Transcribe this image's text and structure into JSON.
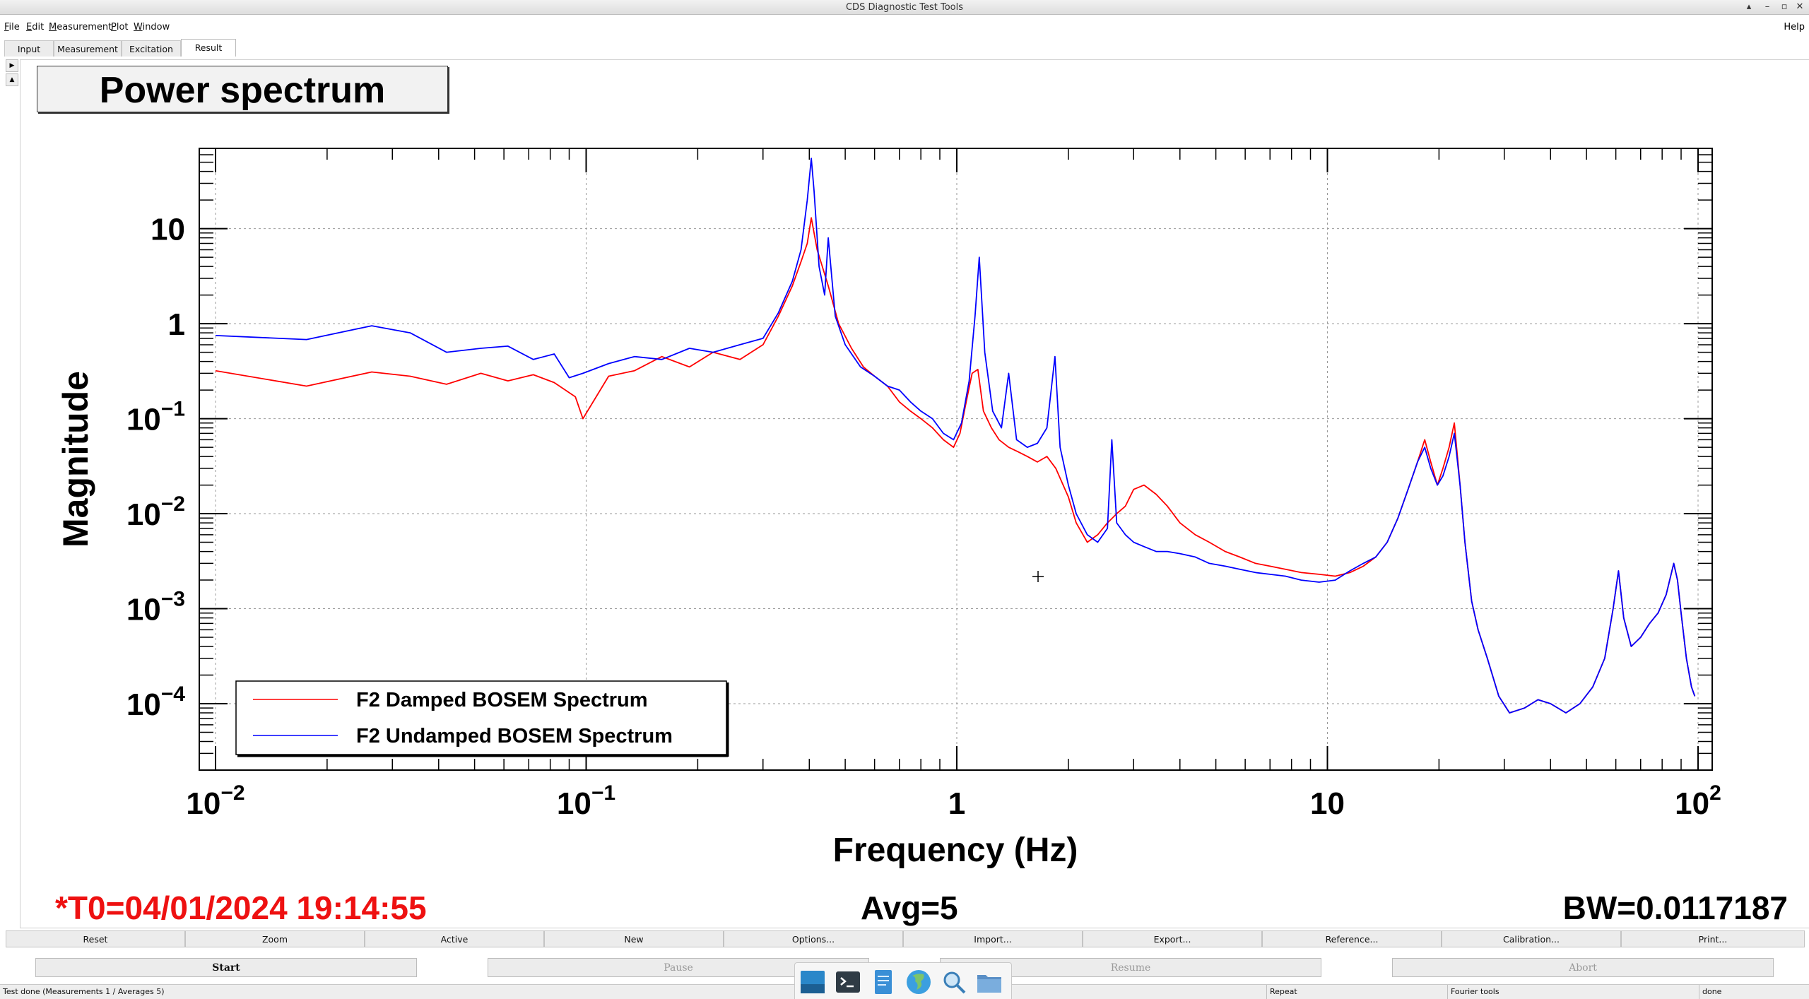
{
  "window": {
    "title": "CDS Diagnostic Test Tools",
    "controls": [
      "▴",
      "–",
      "▫",
      "✕"
    ]
  },
  "menu": {
    "items": [
      {
        "label": "File",
        "accel": "F",
        "rest": "ile"
      },
      {
        "label": "Edit",
        "accel": "E",
        "rest": "dit"
      },
      {
        "label": "Measurement",
        "accel": "M",
        "rest": "easurement"
      },
      {
        "label": "Plot",
        "accel": "P",
        "rest": "lot"
      },
      {
        "label": "Window",
        "accel": "W",
        "rest": "indow"
      }
    ],
    "help": "Help"
  },
  "tabs": [
    {
      "label": "Input",
      "active": false
    },
    {
      "label": "Measurement",
      "active": false
    },
    {
      "label": "Excitation",
      "active": false
    },
    {
      "label": "Result",
      "active": true
    }
  ],
  "side_arrows": [
    "▶",
    "▲"
  ],
  "plot": {
    "title": "Power spectrum",
    "t0": "*T0=04/01/2024 19:14:55",
    "avg": "Avg=5",
    "bw": "BW=0.0117187"
  },
  "colors": {
    "damped": "#ff0000",
    "undamped": "#0000ff",
    "t0_text": "#ee1111"
  },
  "chart_data": {
    "type": "line",
    "title": "Power spectrum",
    "xlabel": "Frequency (Hz)",
    "ylabel": "Magnitude",
    "xscale": "log",
    "yscale": "log",
    "xlim": [
      0.01,
      100
    ],
    "ylim": [
      2e-05,
      70
    ],
    "x_ticks": [
      {
        "base": "10",
        "exp": "−2"
      },
      {
        "base": "10",
        "exp": "−1"
      },
      {
        "base": "1",
        "exp": ""
      },
      {
        "base": "10",
        "exp": ""
      },
      {
        "base": "10",
        "exp": "2"
      }
    ],
    "y_ticks": [
      {
        "base": "10",
        "exp": "−4"
      },
      {
        "base": "10",
        "exp": "−3"
      },
      {
        "base": "10",
        "exp": "−2"
      },
      {
        "base": "10",
        "exp": "−1"
      },
      {
        "base": "1",
        "exp": ""
      },
      {
        "base": "10",
        "exp": ""
      }
    ],
    "grid": true,
    "legend_position": "bottom-left",
    "series": [
      {
        "name": "F2 Damped BOSEM Spectrum",
        "color": "#ff0000",
        "x": [
          0.01,
          0.0176,
          0.0264,
          0.0335,
          0.042,
          0.052,
          0.0615,
          0.072,
          0.082,
          0.0935,
          0.098,
          0.115,
          0.135,
          0.16,
          0.19,
          0.22,
          0.26,
          0.3,
          0.33,
          0.36,
          0.38,
          0.395,
          0.405,
          0.42,
          0.45,
          0.48,
          0.52,
          0.56,
          0.6,
          0.65,
          0.7,
          0.75,
          0.8,
          0.86,
          0.92,
          0.98,
          1.02,
          1.06,
          1.1,
          1.14,
          1.18,
          1.24,
          1.3,
          1.38,
          1.46,
          1.55,
          1.65,
          1.75,
          1.85,
          2.0,
          2.1,
          2.25,
          2.4,
          2.55,
          2.7,
          2.85,
          3.0,
          3.2,
          3.45,
          3.7,
          4.0,
          4.4,
          4.8,
          5.3,
          5.8,
          6.4,
          7.0,
          7.7,
          8.5,
          9.5,
          10.5,
          11.5,
          12.5,
          13.5,
          14.5,
          15.5,
          16.5,
          17.5,
          18.3,
          19.0,
          19.8,
          20.5,
          21.3,
          22.0,
          22.8,
          23.5,
          24.5,
          25.5,
          27.0,
          29.0,
          31.0,
          34.0,
          37.0,
          40.0,
          44.0,
          48.0,
          52.0,
          56.0,
          59.0,
          61.0,
          63.0,
          66.0,
          70.0,
          74.0,
          78.0,
          82.0,
          86.0,
          88.0,
          90.0,
          93.0,
          96.0,
          98.0
        ],
        "y": [
          0.32,
          0.22,
          0.31,
          0.28,
          0.23,
          0.3,
          0.25,
          0.29,
          0.24,
          0.17,
          0.1,
          0.28,
          0.32,
          0.45,
          0.35,
          0.5,
          0.42,
          0.6,
          1.2,
          2.5,
          4.5,
          7.0,
          13.0,
          6.0,
          2.5,
          1.0,
          0.55,
          0.35,
          0.28,
          0.22,
          0.15,
          0.12,
          0.1,
          0.08,
          0.06,
          0.05,
          0.07,
          0.15,
          0.3,
          0.33,
          0.12,
          0.08,
          0.06,
          0.05,
          0.045,
          0.04,
          0.035,
          0.04,
          0.03,
          0.015,
          0.008,
          0.005,
          0.006,
          0.008,
          0.01,
          0.012,
          0.018,
          0.02,
          0.016,
          0.012,
          0.008,
          0.006,
          0.005,
          0.004,
          0.0035,
          0.003,
          0.0028,
          0.0026,
          0.0024,
          0.0023,
          0.0022,
          0.0024,
          0.0028,
          0.0035,
          0.005,
          0.009,
          0.018,
          0.035,
          0.06,
          0.035,
          0.02,
          0.03,
          0.05,
          0.09,
          0.02,
          0.005,
          0.0012,
          0.0006,
          0.0003,
          0.00012,
          8e-05,
          9e-05,
          0.00011,
          0.0001,
          8e-05,
          0.0001,
          0.00015,
          0.0003,
          0.001,
          0.0025,
          0.0008,
          0.0004,
          0.0005,
          0.0007,
          0.0009,
          0.0014,
          0.003,
          0.002,
          0.0009,
          0.0003,
          0.00015,
          0.00012
        ]
      },
      {
        "name": "F2 Undamped BOSEM Spectrum",
        "color": "#0000ff",
        "x": [
          0.01,
          0.0176,
          0.0264,
          0.0335,
          0.042,
          0.052,
          0.0615,
          0.072,
          0.082,
          0.09,
          0.098,
          0.115,
          0.135,
          0.16,
          0.19,
          0.22,
          0.26,
          0.3,
          0.33,
          0.36,
          0.38,
          0.395,
          0.405,
          0.412,
          0.425,
          0.44,
          0.45,
          0.47,
          0.5,
          0.55,
          0.6,
          0.65,
          0.7,
          0.75,
          0.8,
          0.86,
          0.92,
          0.98,
          1.03,
          1.08,
          1.12,
          1.15,
          1.19,
          1.25,
          1.32,
          1.38,
          1.45,
          1.55,
          1.65,
          1.75,
          1.84,
          1.9,
          2.0,
          2.1,
          2.25,
          2.4,
          2.55,
          2.62,
          2.7,
          2.85,
          3.0,
          3.2,
          3.45,
          3.7,
          4.0,
          4.4,
          4.8,
          5.3,
          5.8,
          6.4,
          7.0,
          7.7,
          8.5,
          9.5,
          10.5,
          11.5,
          12.5,
          13.5,
          14.5,
          15.5,
          16.5,
          17.5,
          18.3,
          19.0,
          19.8,
          20.5,
          21.3,
          22.0,
          22.8,
          23.5,
          24.5,
          25.5,
          27.0,
          29.0,
          31.0,
          34.0,
          37.0,
          40.0,
          44.0,
          48.0,
          52.0,
          56.0,
          59.0,
          61.0,
          63.0,
          66.0,
          70.0,
          74.0,
          78.0,
          82.0,
          86.0,
          88.0,
          90.0,
          93.0,
          96.0,
          98.0
        ],
        "y": [
          0.75,
          0.68,
          0.95,
          0.8,
          0.5,
          0.55,
          0.58,
          0.42,
          0.48,
          0.27,
          0.3,
          0.38,
          0.45,
          0.42,
          0.55,
          0.5,
          0.6,
          0.7,
          1.3,
          2.8,
          6.0,
          20.0,
          55.0,
          25.0,
          4.0,
          2.0,
          8.0,
          1.2,
          0.6,
          0.35,
          0.28,
          0.22,
          0.2,
          0.15,
          0.12,
          0.1,
          0.07,
          0.06,
          0.09,
          0.25,
          1.2,
          5.0,
          0.5,
          0.12,
          0.08,
          0.3,
          0.06,
          0.05,
          0.055,
          0.08,
          0.45,
          0.05,
          0.02,
          0.01,
          0.006,
          0.005,
          0.007,
          0.06,
          0.008,
          0.006,
          0.005,
          0.0045,
          0.004,
          0.004,
          0.0038,
          0.0035,
          0.003,
          0.0028,
          0.0026,
          0.0024,
          0.0023,
          0.0022,
          0.002,
          0.0019,
          0.002,
          0.0025,
          0.003,
          0.0035,
          0.005,
          0.009,
          0.018,
          0.035,
          0.05,
          0.03,
          0.02,
          0.025,
          0.04,
          0.07,
          0.02,
          0.005,
          0.0012,
          0.0006,
          0.0003,
          0.00012,
          8e-05,
          9e-05,
          0.00011,
          0.0001,
          8e-05,
          0.0001,
          0.00015,
          0.0003,
          0.001,
          0.0025,
          0.0008,
          0.0004,
          0.0005,
          0.0007,
          0.0009,
          0.0014,
          0.003,
          0.002,
          0.0009,
          0.0003,
          0.00015,
          0.00012
        ]
      }
    ]
  },
  "buttons": [
    "Reset",
    "Zoom",
    "Active",
    "New",
    "Options...",
    "Import...",
    "Export...",
    "Reference...",
    "Calibration...",
    "Print..."
  ],
  "run_buttons": [
    {
      "label": "Start",
      "enabled": true
    },
    {
      "label": "Pause",
      "enabled": false
    },
    {
      "label": "Resume",
      "enabled": false
    },
    {
      "label": "Abort",
      "enabled": false
    }
  ],
  "status": [
    "Test done (Measurements 1 / Averages 5)",
    "Repeat",
    "Fourier tools",
    "done"
  ],
  "taskbar": [
    "desktop-icon",
    "terminal-icon",
    "text-editor-icon",
    "web-browser-icon",
    "search-icon",
    "file-manager-icon"
  ]
}
